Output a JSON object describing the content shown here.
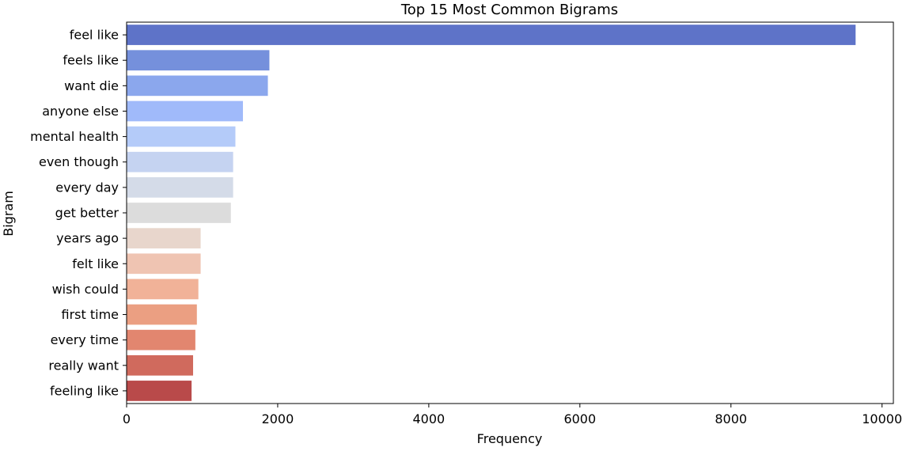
{
  "chart_data": {
    "type": "bar",
    "orientation": "horizontal",
    "title": "Top 15 Most Common Bigrams",
    "xlabel": "Frequency",
    "ylabel": "Bigram",
    "xlim": [
      0,
      10150
    ],
    "xticks": [
      0,
      2000,
      4000,
      6000,
      8000,
      10000
    ],
    "xtick_labels": [
      "0",
      "2000",
      "4000",
      "6000",
      "8000",
      "10000"
    ],
    "grid": false,
    "legend": "none",
    "palette": "coolwarm",
    "categories": [
      "feel like",
      "feels like",
      "want die",
      "anyone else",
      "mental health",
      "even though",
      "every day",
      "get better",
      "years ago",
      "felt like",
      "wish could",
      "first time",
      "every time",
      "really want",
      "feeling like"
    ],
    "values": [
      9650,
      1890,
      1870,
      1540,
      1440,
      1410,
      1410,
      1380,
      980,
      980,
      950,
      930,
      910,
      880,
      860
    ],
    "colors": [
      "#5e73c8",
      "#7590dc",
      "#8ba7ed",
      "#a0bafa",
      "#b4cbf9",
      "#c5d3f1",
      "#d4dbe8",
      "#dcdcdc",
      "#e8d6cc",
      "#efc4b2",
      "#f1b298",
      "#eb9f82",
      "#e2866f",
      "#d06a5d",
      "#b94a4a"
    ]
  }
}
